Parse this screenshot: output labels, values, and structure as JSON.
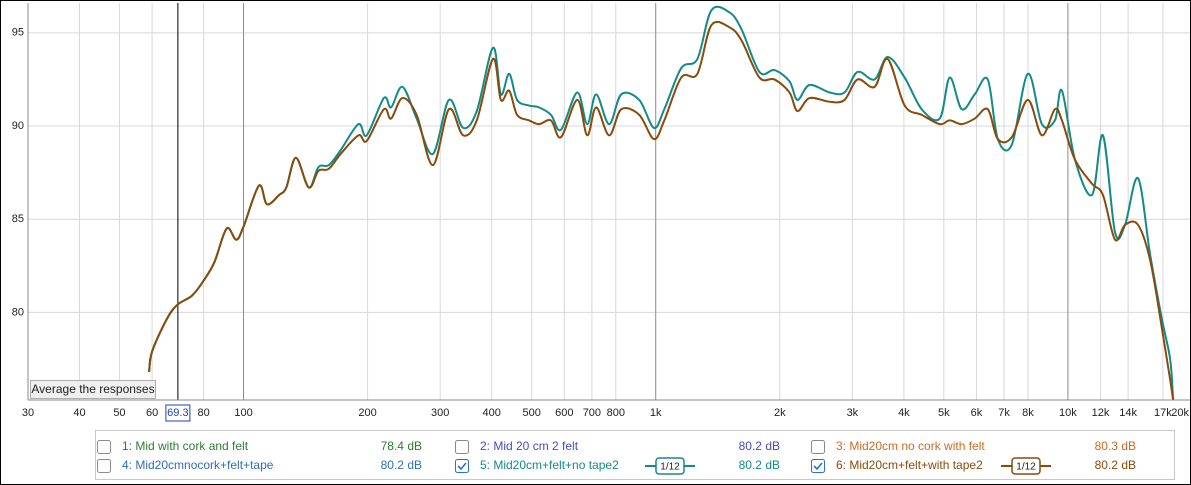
{
  "chart_data": {
    "type": "line",
    "xscale": "log",
    "grid": true,
    "xlim": [
      30,
      20000
    ],
    "ylim": [
      75.3,
      96.6
    ],
    "xticks": [
      30,
      40,
      50,
      60,
      80,
      100,
      200,
      300,
      400,
      500,
      600,
      700,
      800,
      {
        "value": 1000,
        "label": "1k"
      },
      {
        "value": 2000,
        "label": "2k"
      },
      {
        "value": 3000,
        "label": "3k"
      },
      {
        "value": 4000,
        "label": "4k"
      },
      {
        "value": 5000,
        "label": "5k"
      },
      {
        "value": 6000,
        "label": "6k"
      },
      {
        "value": 7000,
        "label": "7k"
      },
      {
        "value": 8000,
        "label": "8k"
      },
      {
        "value": 10000,
        "label": "10k"
      },
      {
        "value": 12000,
        "label": "12k"
      },
      {
        "value": 14000,
        "label": "14k"
      },
      {
        "value": 17000,
        "label": "17k"
      },
      {
        "value": 20000,
        "label": "20k"
      }
    ],
    "yticks": [
      80,
      85,
      90,
      95
    ],
    "cursor": 69.3,
    "x": [
      59,
      60,
      65,
      69,
      75,
      80,
      85,
      91,
      96,
      100,
      109,
      114,
      122,
      127,
      134,
      144,
      152,
      161,
      172,
      190,
      199,
      219,
      228,
      243,
      263,
      288,
      315,
      341,
      368,
      403,
      421,
      441,
      461,
      493,
      521,
      557,
      589,
      645,
      682,
      717,
      771,
      825,
      912,
      990,
      1049,
      1153,
      1262,
      1364,
      1509,
      1614,
      1785,
      1941,
      2111,
      2207,
      2360,
      2641,
      2871,
      3088,
      3396,
      3653,
      4017,
      4418,
      4886,
      5167,
      5526,
      5943,
      6391,
      6759,
      7310,
      7994,
      8647,
      9299,
      9670,
      10400,
      11440,
      12160,
      13010,
      13760,
      14790,
      15830,
      16920,
      17700,
      18000
    ],
    "series": [
      {
        "name": "1: Mid with cork and felt",
        "color": "#2e7d32",
        "level": "78.4 dB",
        "checked": false
      },
      {
        "name": "2: Mid 20 cm 2 felt",
        "color": "#4848c0",
        "level": "80.2 dB",
        "checked": false
      },
      {
        "name": "3: Mid20cm no cork with felt",
        "color": "#d2691e",
        "level": "80.3 dB",
        "checked": false
      },
      {
        "name": "4: Mid20cmnocork+felt+tape",
        "color": "#2f6fb8",
        "level": "80.2 dB",
        "checked": false
      },
      {
        "name": "5: Mid20cm+felt+no tape2",
        "color": "#138a8a",
        "level": "80.2 dB",
        "checked": true,
        "smoothing": "1/12",
        "values": [
          76.8,
          77.9,
          79.6,
          80.4,
          80.9,
          81.7,
          82.7,
          84.5,
          83.9,
          84.6,
          86.8,
          85.8,
          86.3,
          86.7,
          88.3,
          86.7,
          87.8,
          87.9,
          88.7,
          90.1,
          89.5,
          91.5,
          91.0,
          92.1,
          90.4,
          88.5,
          91.4,
          89.9,
          90.8,
          94.2,
          91.7,
          92.8,
          91.4,
          91.1,
          91.0,
          90.6,
          89.8,
          91.8,
          90.1,
          91.7,
          90.1,
          91.7,
          91.4,
          89.9,
          90.9,
          93.1,
          93.6,
          96.2,
          96.1,
          95.2,
          92.9,
          93.0,
          92.4,
          91.4,
          92.2,
          91.8,
          91.8,
          92.9,
          92.5,
          93.7,
          92.6,
          90.9,
          90.4,
          92.6,
          90.9,
          91.7,
          92.5,
          89.3,
          89.0,
          92.8,
          90.1,
          90.3,
          91.9,
          88.2,
          86.3,
          89.5,
          84.3,
          84.7,
          87.2,
          83.1,
          79.6,
          77.5,
          75.3
        ]
      },
      {
        "name": "6: Mid20cm+felt+with tape2",
        "color": "#8a4a0a",
        "level": "80.2 dB",
        "checked": true,
        "smoothing": "1/12",
        "values": [
          76.8,
          77.9,
          79.6,
          80.4,
          80.9,
          81.7,
          82.7,
          84.5,
          83.9,
          84.6,
          86.8,
          85.8,
          86.3,
          86.7,
          88.3,
          86.7,
          87.6,
          87.7,
          88.5,
          89.5,
          89.2,
          90.9,
          90.4,
          91.5,
          90.6,
          87.9,
          90.9,
          89.5,
          90.3,
          93.6,
          91.4,
          91.9,
          90.6,
          90.3,
          90.1,
          90.3,
          89.4,
          91.4,
          89.5,
          91.0,
          89.5,
          90.9,
          90.6,
          89.3,
          90.3,
          92.6,
          92.8,
          95.4,
          95.3,
          94.6,
          92.6,
          92.5,
          91.8,
          90.8,
          91.5,
          91.3,
          91.4,
          92.5,
          92.1,
          93.6,
          91.1,
          90.6,
          90.1,
          90.3,
          90.1,
          90.4,
          90.9,
          89.3,
          89.4,
          91.4,
          89.5,
          90.9,
          90.3,
          88.2,
          86.9,
          86.3,
          83.9,
          84.7,
          84.7,
          82.8,
          79.1,
          76.4,
          75.3
        ]
      }
    ]
  },
  "button": "Average the responses"
}
